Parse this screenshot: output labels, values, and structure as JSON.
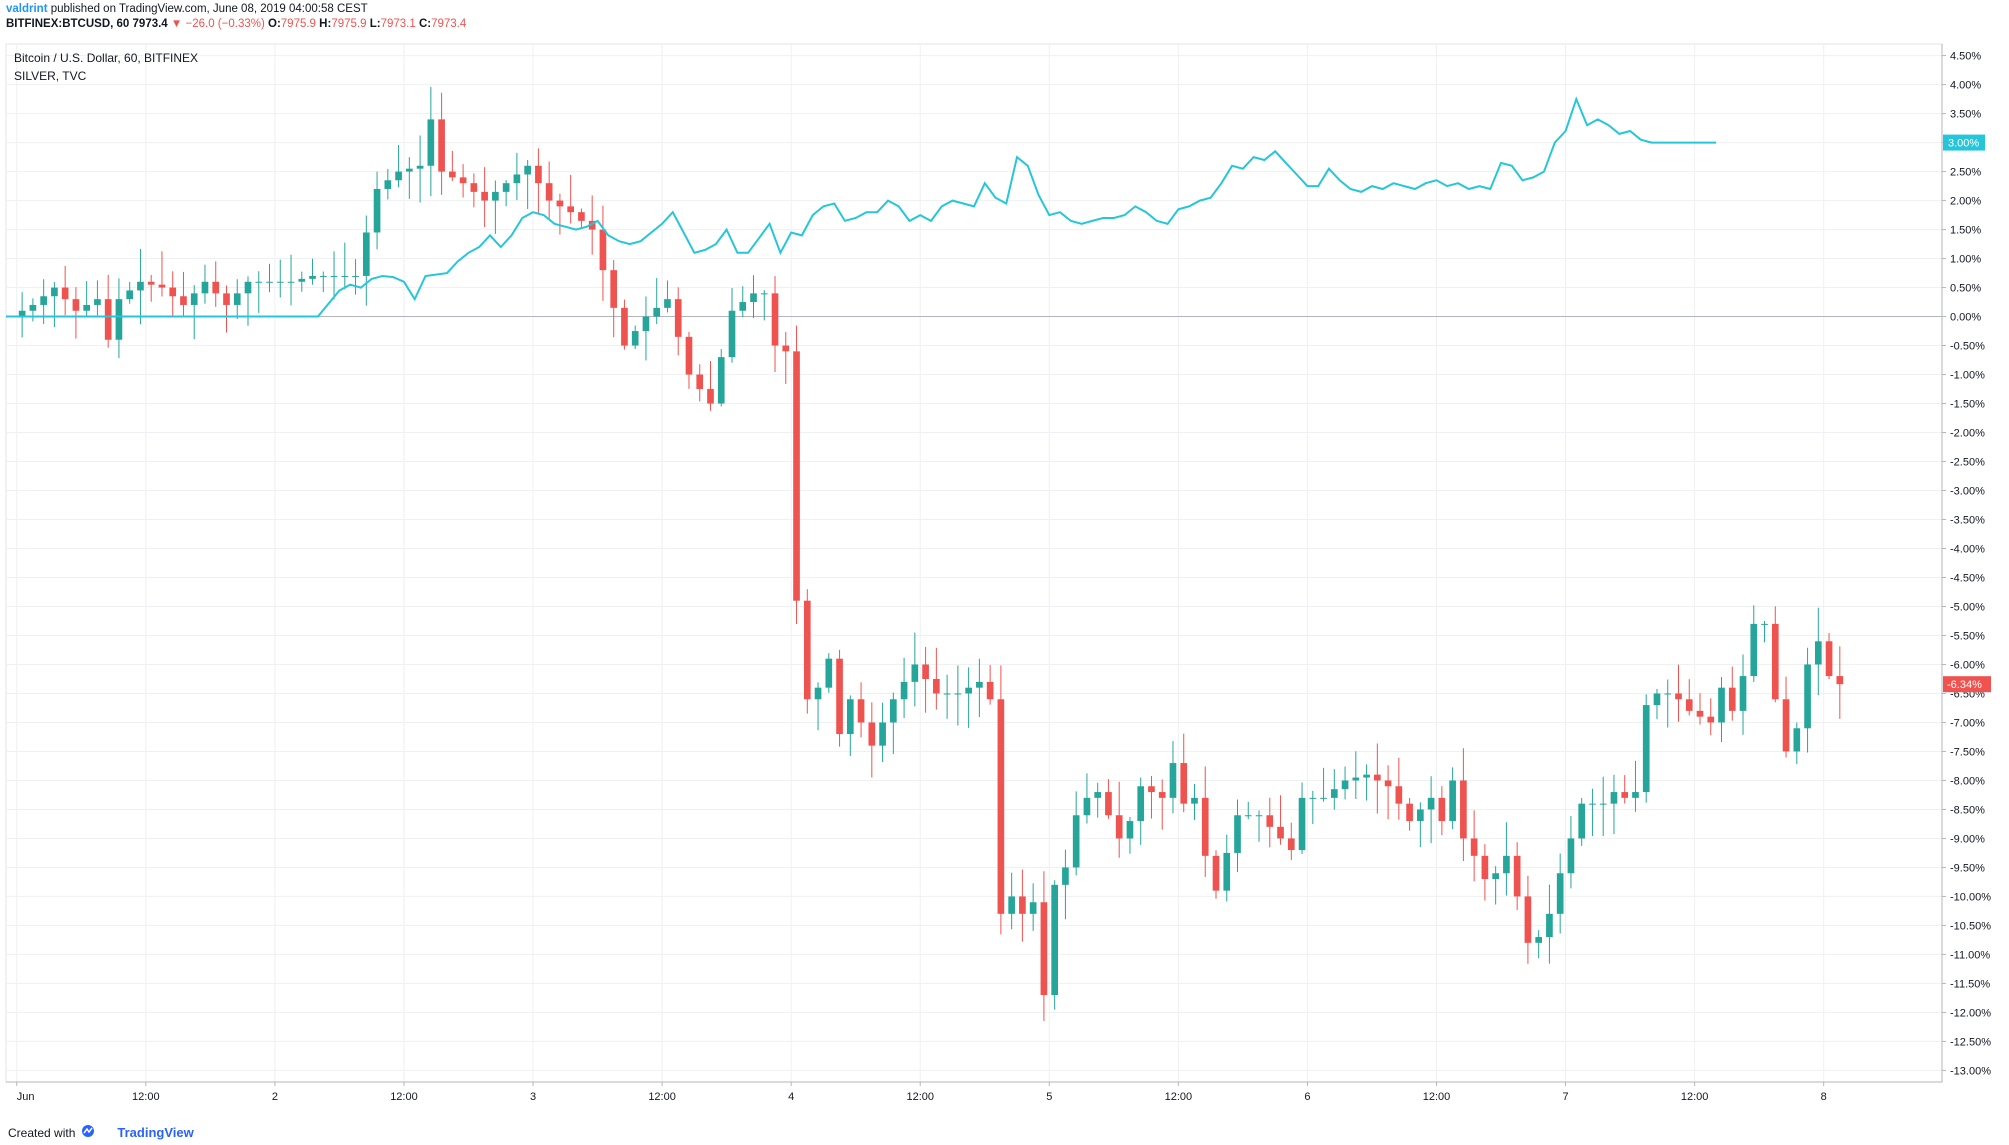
{
  "header": {
    "publisher": "valdrint",
    "published_text": "published on TradingView.com, June 08, 2019 04:00:58 CEST",
    "symbol": "BITFINEX:BTCUSD, 60",
    "last": "7973.4",
    "change": "−26.0 (−0.33%)",
    "o_label": "O:",
    "o_val": "7975.9",
    "h_label": "H:",
    "h_val": "7975.9",
    "l_label": "L:",
    "l_val": "7973.1",
    "c_label": "C:",
    "c_val": "7973.4"
  },
  "legend": {
    "main": "Bitcoin / U.S. Dollar, 60, BITFINEX",
    "compare": "SILVER, TVC"
  },
  "footer": {
    "created": "Created with",
    "brand": "TradingView"
  },
  "colors": {
    "up": "#26a69a",
    "down": "#ef5350",
    "compare_line": "#26c6da",
    "grid": "#eef0f3",
    "axis_text": "#131722"
  },
  "chart_data": {
    "type": "candlestick",
    "title": "Bitcoin / U.S. Dollar, 60, BITFINEX",
    "y_unit": "percent change",
    "ylim": [
      -13.2,
      4.7
    ],
    "y_ticks": [
      "4.50%",
      "4.00%",
      "3.50%",
      "3.00%",
      "2.50%",
      "2.00%",
      "1.50%",
      "1.00%",
      "0.50%",
      "0.00%",
      "-0.50%",
      "-1.00%",
      "-1.50%",
      "-2.00%",
      "-2.50%",
      "-3.00%",
      "-3.50%",
      "-4.00%",
      "-4.50%",
      "-5.00%",
      "-5.50%",
      "-6.00%",
      "-6.50%",
      "-7.00%",
      "-7.50%",
      "-8.00%",
      "-8.50%",
      "-9.00%",
      "-9.50%",
      "-10.00%",
      "-10.50%",
      "-11.00%",
      "-11.50%",
      "-12.00%",
      "-12.50%",
      "-13.00%"
    ],
    "y_tick_values": [
      4.5,
      4.0,
      3.5,
      3.0,
      2.5,
      2.0,
      1.5,
      1.0,
      0.5,
      0.0,
      -0.5,
      -1.0,
      -1.5,
      -2.0,
      -2.5,
      -3.0,
      -3.5,
      -4.0,
      -4.5,
      -5.0,
      -5.5,
      -6.0,
      -6.5,
      -7.0,
      -7.5,
      -8.0,
      -8.5,
      -9.0,
      -9.5,
      -10.0,
      -10.5,
      -11.0,
      -11.5,
      -12.0,
      -12.5,
      -13.0
    ],
    "x_range_hours": [
      -1,
      179
    ],
    "x_ticks": [
      {
        "label": "Jun",
        "hour": 0
      },
      {
        "label": "12:00",
        "hour": 12
      },
      {
        "label": "2",
        "hour": 24
      },
      {
        "label": "12:00",
        "hour": 36
      },
      {
        "label": "3",
        "hour": 48
      },
      {
        "label": "12:00",
        "hour": 60
      },
      {
        "label": "4",
        "hour": 72
      },
      {
        "label": "12:00",
        "hour": 84
      },
      {
        "label": "5",
        "hour": 96
      },
      {
        "label": "12:00",
        "hour": 108
      },
      {
        "label": "6",
        "hour": 120
      },
      {
        "label": "12:00",
        "hour": 132
      },
      {
        "label": "7",
        "hour": 144
      },
      {
        "label": "12:00",
        "hour": 156
      },
      {
        "label": "8",
        "hour": 168
      }
    ],
    "anchors": [
      [
        0,
        0
      ],
      [
        2,
        0.2
      ],
      [
        4,
        0.5
      ],
      [
        6,
        0.1
      ],
      [
        8,
        0.3
      ],
      [
        9,
        -0.4
      ],
      [
        10,
        0.3
      ],
      [
        12,
        0.6
      ],
      [
        14,
        0.5
      ],
      [
        16,
        0.2
      ],
      [
        18,
        0.6
      ],
      [
        20,
        0.2
      ],
      [
        22,
        0.6
      ],
      [
        24,
        0.6
      ],
      [
        26,
        0.6
      ],
      [
        28,
        0.7
      ],
      [
        30,
        0.7
      ],
      [
        32,
        0.7
      ],
      [
        34,
        2.2
      ],
      [
        36,
        2.5
      ],
      [
        38,
        2.6
      ],
      [
        39,
        3.4
      ],
      [
        40,
        2.5
      ],
      [
        42,
        2.3
      ],
      [
        44,
        2.0
      ],
      [
        46,
        2.3
      ],
      [
        48,
        2.6
      ],
      [
        50,
        2.0
      ],
      [
        52,
        1.8
      ],
      [
        54,
        1.5
      ],
      [
        55,
        0.8
      ],
      [
        57,
        -0.5
      ],
      [
        59,
        0.0
      ],
      [
        61,
        0.3
      ],
      [
        63,
        -1.0
      ],
      [
        65,
        -1.5
      ],
      [
        67,
        0.1
      ],
      [
        69,
        0.4
      ],
      [
        70,
        0.4
      ],
      [
        71,
        -0.5
      ],
      [
        72,
        -0.6
      ],
      [
        73,
        -4.9
      ],
      [
        74,
        -6.6
      ],
      [
        75,
        -6.4
      ],
      [
        76,
        -5.9
      ],
      [
        77,
        -7.2
      ],
      [
        78,
        -6.6
      ],
      [
        80,
        -7.4
      ],
      [
        82,
        -6.6
      ],
      [
        84,
        -6.0
      ],
      [
        86,
        -6.5
      ],
      [
        88,
        -6.5
      ],
      [
        90,
        -6.3
      ],
      [
        91,
        -6.6
      ],
      [
        92,
        -10.3
      ],
      [
        93,
        -10.0
      ],
      [
        94,
        -10.3
      ],
      [
        95,
        -10.1
      ],
      [
        96,
        -11.7
      ],
      [
        97,
        -9.8
      ],
      [
        98,
        -9.5
      ],
      [
        99,
        -8.6
      ],
      [
        100,
        -8.3
      ],
      [
        101,
        -8.2
      ],
      [
        102,
        -8.6
      ],
      [
        103,
        -9.0
      ],
      [
        104,
        -8.7
      ],
      [
        105,
        -8.1
      ],
      [
        107,
        -8.3
      ],
      [
        108,
        -7.7
      ],
      [
        109,
        -8.4
      ],
      [
        110,
        -8.3
      ],
      [
        111,
        -9.3
      ],
      [
        112,
        -9.9
      ],
      [
        114,
        -8.6
      ],
      [
        116,
        -8.6
      ],
      [
        118,
        -9.0
      ],
      [
        119,
        -9.2
      ],
      [
        120,
        -8.3
      ],
      [
        122,
        -8.3
      ],
      [
        124,
        -8.0
      ],
      [
        126,
        -7.9
      ],
      [
        128,
        -8.1
      ],
      [
        130,
        -8.7
      ],
      [
        132,
        -8.3
      ],
      [
        133,
        -8.7
      ],
      [
        134,
        -8.0
      ],
      [
        135,
        -9.0
      ],
      [
        136,
        -9.3
      ],
      [
        137,
        -9.7
      ],
      [
        138,
        -9.6
      ],
      [
        139,
        -9.3
      ],
      [
        140,
        -10.0
      ],
      [
        141,
        -10.8
      ],
      [
        142,
        -10.7
      ],
      [
        143,
        -10.3
      ],
      [
        144,
        -9.6
      ],
      [
        145,
        -9.0
      ],
      [
        146,
        -8.4
      ],
      [
        147,
        -8.4
      ],
      [
        148,
        -8.4
      ],
      [
        149,
        -8.2
      ],
      [
        150,
        -8.3
      ],
      [
        151,
        -8.2
      ],
      [
        152,
        -6.7
      ],
      [
        153,
        -6.5
      ],
      [
        154,
        -6.5
      ],
      [
        155,
        -6.6
      ],
      [
        156,
        -6.8
      ],
      [
        157,
        -6.9
      ],
      [
        158,
        -7.0
      ],
      [
        159,
        -6.4
      ],
      [
        160,
        -6.8
      ],
      [
        161,
        -6.2
      ],
      [
        162,
        -5.3
      ],
      [
        163,
        -5.3
      ],
      [
        164,
        -6.6
      ],
      [
        165,
        -7.5
      ],
      [
        166,
        -7.1
      ],
      [
        167,
        -6.0
      ],
      [
        168,
        -5.6
      ],
      [
        169,
        -6.2
      ],
      [
        169.6,
        -6.34
      ]
    ],
    "compare_series": {
      "name": "SILVER, TVC",
      "last_label": "3.00%",
      "points": [
        [
          -1,
          0
        ],
        [
          28,
          0
        ],
        [
          30,
          0.45
        ],
        [
          31,
          0.55
        ],
        [
          32,
          0.5
        ],
        [
          33,
          0.65
        ],
        [
          34,
          0.7
        ],
        [
          35,
          0.68
        ],
        [
          36,
          0.6
        ],
        [
          37,
          0.3
        ],
        [
          38,
          0.7
        ],
        [
          40,
          0.75
        ],
        [
          41,
          0.95
        ],
        [
          42,
          1.1
        ],
        [
          43,
          1.2
        ],
        [
          44,
          1.4
        ],
        [
          45,
          1.2
        ],
        [
          46,
          1.4
        ],
        [
          47,
          1.7
        ],
        [
          48,
          1.8
        ],
        [
          49,
          1.75
        ],
        [
          50,
          1.6
        ],
        [
          51,
          1.55
        ],
        [
          52,
          1.5
        ],
        [
          53,
          1.55
        ],
        [
          54,
          1.65
        ],
        [
          55,
          1.4
        ],
        [
          56,
          1.3
        ],
        [
          57,
          1.25
        ],
        [
          58,
          1.3
        ],
        [
          59,
          1.45
        ],
        [
          60,
          1.6
        ],
        [
          61,
          1.8
        ],
        [
          62,
          1.45
        ],
        [
          63,
          1.1
        ],
        [
          64,
          1.15
        ],
        [
          65,
          1.25
        ],
        [
          66,
          1.5
        ],
        [
          67,
          1.1
        ],
        [
          68,
          1.1
        ],
        [
          69,
          1.35
        ],
        [
          70,
          1.6
        ],
        [
          71,
          1.1
        ],
        [
          72,
          1.45
        ],
        [
          73,
          1.4
        ],
        [
          74,
          1.75
        ],
        [
          75,
          1.9
        ],
        [
          76,
          1.95
        ],
        [
          77,
          1.65
        ],
        [
          78,
          1.7
        ],
        [
          79,
          1.8
        ],
        [
          80,
          1.8
        ],
        [
          81,
          2.0
        ],
        [
          82,
          1.9
        ],
        [
          83,
          1.65
        ],
        [
          84,
          1.75
        ],
        [
          85,
          1.65
        ],
        [
          86,
          1.9
        ],
        [
          87,
          2.0
        ],
        [
          88,
          1.95
        ],
        [
          89,
          1.9
        ],
        [
          90,
          2.3
        ],
        [
          91,
          2.05
        ],
        [
          92,
          1.95
        ],
        [
          93,
          2.75
        ],
        [
          94,
          2.6
        ],
        [
          95,
          2.1
        ],
        [
          96,
          1.75
        ],
        [
          97,
          1.8
        ],
        [
          98,
          1.65
        ],
        [
          99,
          1.6
        ],
        [
          100,
          1.65
        ],
        [
          101,
          1.7
        ],
        [
          102,
          1.7
        ],
        [
          103,
          1.75
        ],
        [
          104,
          1.9
        ],
        [
          105,
          1.8
        ],
        [
          106,
          1.65
        ],
        [
          107,
          1.6
        ],
        [
          108,
          1.85
        ],
        [
          109,
          1.9
        ],
        [
          110,
          2.0
        ],
        [
          111,
          2.05
        ],
        [
          112,
          2.3
        ],
        [
          113,
          2.6
        ],
        [
          114,
          2.55
        ],
        [
          115,
          2.75
        ],
        [
          116,
          2.7
        ],
        [
          117,
          2.85
        ],
        [
          118,
          2.65
        ],
        [
          119,
          2.45
        ],
        [
          120,
          2.25
        ],
        [
          121,
          2.25
        ],
        [
          122,
          2.55
        ],
        [
          123,
          2.35
        ],
        [
          124,
          2.2
        ],
        [
          125,
          2.15
        ],
        [
          126,
          2.25
        ],
        [
          127,
          2.2
        ],
        [
          128,
          2.3
        ],
        [
          129,
          2.25
        ],
        [
          130,
          2.2
        ],
        [
          131,
          2.3
        ],
        [
          132,
          2.35
        ],
        [
          133,
          2.25
        ],
        [
          134,
          2.3
        ],
        [
          135,
          2.2
        ],
        [
          136,
          2.25
        ],
        [
          137,
          2.2
        ],
        [
          138,
          2.65
        ],
        [
          139,
          2.6
        ],
        [
          140,
          2.35
        ],
        [
          141,
          2.4
        ],
        [
          142,
          2.5
        ],
        [
          143,
          3.0
        ],
        [
          144,
          3.2
        ],
        [
          145,
          3.75
        ],
        [
          146,
          3.3
        ],
        [
          147,
          3.4
        ],
        [
          148,
          3.3
        ],
        [
          149,
          3.15
        ],
        [
          150,
          3.2
        ],
        [
          151,
          3.05
        ],
        [
          152,
          3.0
        ],
        [
          153,
          3.0
        ],
        [
          155,
          3.0
        ],
        [
          157,
          3.0
        ],
        [
          158,
          3.0
        ]
      ]
    },
    "last_label": "-6.34%"
  }
}
